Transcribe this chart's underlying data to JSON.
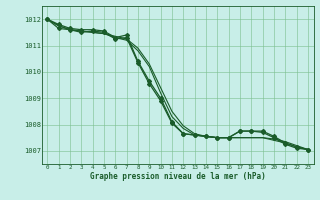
{
  "title": "Graphe pression niveau de la mer (hPa)",
  "background_color": "#c8eee8",
  "grid_color": "#7abf8e",
  "line_color": "#1a5c2a",
  "xlim": [
    -0.5,
    23.5
  ],
  "ylim": [
    1006.5,
    1012.5
  ],
  "yticks": [
    1007,
    1008,
    1009,
    1010,
    1011,
    1012
  ],
  "xticks": [
    0,
    1,
    2,
    3,
    4,
    5,
    6,
    7,
    8,
    9,
    10,
    11,
    12,
    13,
    14,
    15,
    16,
    17,
    18,
    19,
    20,
    21,
    22,
    23
  ],
  "series": [
    {
      "x": [
        0,
        1,
        2,
        3,
        4,
        5,
        6,
        7,
        8,
        9,
        10,
        11,
        12,
        13,
        14,
        15,
        16,
        17,
        18,
        19,
        20,
        21,
        22,
        23
      ],
      "y": [
        1012.0,
        1011.75,
        1011.6,
        1011.55,
        1011.5,
        1011.45,
        1011.35,
        1011.25,
        1010.9,
        1010.3,
        1009.4,
        1008.5,
        1007.95,
        1007.65,
        1007.55,
        1007.5,
        1007.5,
        1007.5,
        1007.5,
        1007.5,
        1007.45,
        1007.35,
        1007.2,
        1007.05
      ],
      "marker": null,
      "linewidth": 0.8
    },
    {
      "x": [
        0,
        1,
        2,
        3,
        4,
        5,
        6,
        7,
        8,
        9,
        10,
        11,
        12,
        13,
        14,
        15,
        16,
        17,
        18,
        19,
        20,
        21,
        22,
        23
      ],
      "y": [
        1012.0,
        1011.75,
        1011.6,
        1011.55,
        1011.5,
        1011.45,
        1011.3,
        1011.2,
        1010.8,
        1010.2,
        1009.2,
        1008.3,
        1007.85,
        1007.6,
        1007.55,
        1007.5,
        1007.5,
        1007.5,
        1007.5,
        1007.5,
        1007.4,
        1007.3,
        1007.15,
        1007.05
      ],
      "marker": null,
      "linewidth": 0.8
    },
    {
      "x": [
        0,
        1,
        2,
        3,
        4,
        5,
        6,
        7,
        8,
        9,
        10,
        11,
        12,
        13,
        14,
        15,
        16,
        17,
        18,
        19,
        20,
        21,
        22,
        23
      ],
      "y": [
        1012.0,
        1011.65,
        1011.6,
        1011.5,
        1011.55,
        1011.5,
        1011.25,
        1011.3,
        1010.35,
        1009.55,
        1008.9,
        1008.05,
        1007.65,
        1007.6,
        1007.55,
        1007.5,
        1007.5,
        1007.75,
        1007.75,
        1007.7,
        1007.5,
        1007.25,
        1007.1,
        1007.05
      ],
      "marker": "D",
      "markersize": 2.0,
      "linewidth": 0.9
    },
    {
      "x": [
        0,
        1,
        2,
        3,
        4,
        5,
        6,
        7,
        8,
        9,
        10,
        11,
        12,
        13,
        14,
        15,
        16,
        17,
        18,
        19,
        20,
        21,
        22,
        23
      ],
      "y": [
        1012.0,
        1011.8,
        1011.65,
        1011.6,
        1011.6,
        1011.55,
        1011.3,
        1011.4,
        1010.4,
        1009.65,
        1009.0,
        1008.1,
        1007.65,
        1007.6,
        1007.55,
        1007.5,
        1007.5,
        1007.75,
        1007.75,
        1007.75,
        1007.55,
        1007.3,
        1007.15,
        1007.05
      ],
      "marker": "D",
      "markersize": 2.0,
      "linewidth": 0.9
    }
  ]
}
